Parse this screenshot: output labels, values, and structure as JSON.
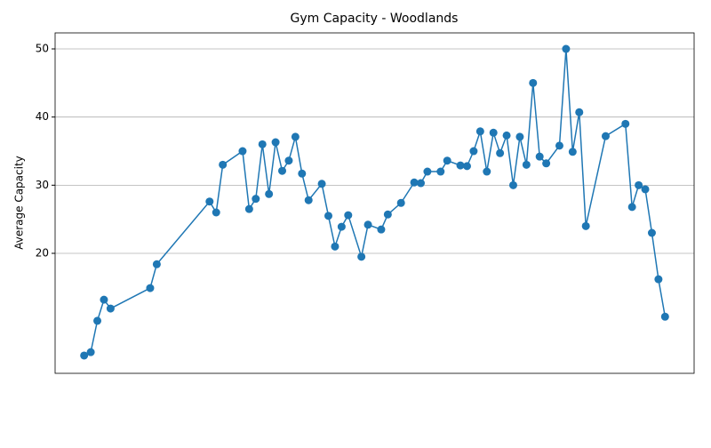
{
  "chart_data": {
    "type": "line",
    "title": "Gym Capacity - Woodlands",
    "y_label": "Average Capacity",
    "x": [
      0,
      1,
      2,
      3,
      4,
      10,
      11,
      19,
      20,
      21,
      24,
      25,
      26,
      27,
      28,
      29,
      30,
      31,
      32,
      33,
      34,
      36,
      37,
      38,
      39,
      40,
      42,
      43,
      45,
      46,
      48,
      50,
      51,
      52,
      54,
      55,
      57,
      58,
      59,
      60,
      61,
      62,
      63,
      64,
      65,
      66,
      67,
      68,
      69,
      70,
      72,
      73,
      74,
      75,
      76,
      79,
      82,
      83,
      84,
      85,
      86,
      87,
      88
    ],
    "series": [
      {
        "name": "Average Capacity",
        "color": "#1f77b4",
        "values": [
          5.0,
          5.5,
          10.1,
          13.2,
          11.9,
          14.9,
          18.4,
          27.6,
          26.0,
          33.0,
          35.0,
          26.5,
          28.0,
          36.0,
          28.7,
          36.3,
          32.1,
          33.6,
          37.1,
          31.7,
          27.8,
          30.2,
          25.5,
          21.0,
          23.9,
          25.6,
          19.5,
          24.2,
          23.5,
          25.7,
          27.4,
          30.4,
          30.3,
          32.0,
          32.0,
          33.6,
          32.9,
          32.8,
          35.0,
          37.9,
          32.0,
          37.7,
          34.7,
          37.3,
          30.0,
          37.1,
          33.0,
          45.0,
          34.2,
          33.2,
          35.8,
          50.0,
          34.9,
          40.7,
          24.0,
          37.2,
          39.0,
          26.8,
          30.0,
          29.4,
          23.0,
          16.2,
          10.7
        ]
      }
    ],
    "xlim": [
      -4.4,
      92.4
    ],
    "ylim": [
      2.39,
      52.35
    ],
    "yticks": [
      20,
      30,
      40,
      50
    ],
    "grid": true
  }
}
